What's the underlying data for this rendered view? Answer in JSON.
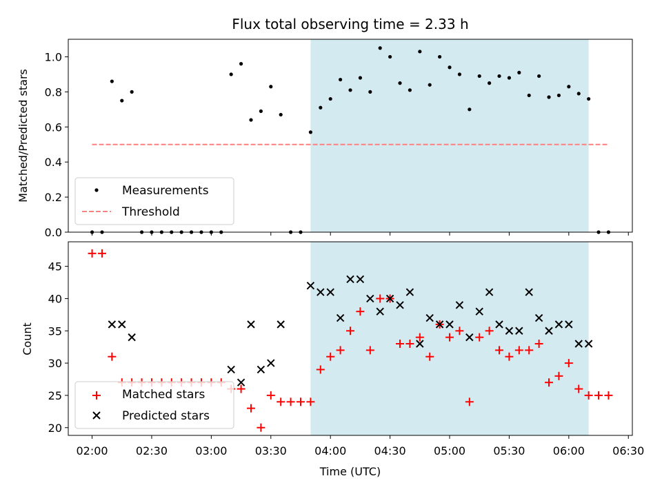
{
  "chart_data": [
    {
      "type": "scatter",
      "title": "Flux total observing time = 2.33 h",
      "xlabel": "",
      "ylabel": "Matched/Predicted stars",
      "ylim": [
        0,
        1.1
      ],
      "yticks": [
        "0.0",
        "0.2",
        "0.4",
        "0.6",
        "0.8",
        "1.0"
      ],
      "x_unit": "minutes after 02:00 UTC",
      "shaded_interval_x": [
        110,
        250
      ],
      "shade_color": "#d4eaf1",
      "legend_position": "lower-left",
      "series": [
        {
          "name": "Measurements",
          "color": "#000000",
          "marker": "dot",
          "x": [
            0,
            5,
            10,
            15,
            20,
            25,
            30,
            35,
            40,
            45,
            50,
            55,
            60,
            65,
            70,
            75,
            80,
            85,
            90,
            95,
            100,
            105,
            110,
            115,
            120,
            125,
            130,
            135,
            140,
            145,
            150,
            155,
            160,
            165,
            170,
            175,
            180,
            185,
            190,
            195,
            200,
            205,
            210,
            215,
            220,
            225,
            230,
            235,
            240,
            245,
            250,
            255,
            260
          ],
          "y": [
            0,
            0,
            0.86,
            0.75,
            0.8,
            0,
            0,
            0,
            0,
            0,
            0,
            0,
            0,
            0,
            0.9,
            0.96,
            0.64,
            0.69,
            0.83,
            0.67,
            0,
            0,
            0.57,
            0.71,
            0.76,
            0.87,
            0.81,
            0.88,
            0.8,
            1.05,
            1.0,
            0.85,
            0.81,
            1.03,
            0.84,
            1.0,
            0.94,
            0.9,
            0.7,
            0.89,
            0.85,
            0.89,
            0.88,
            0.91,
            0.78,
            0.89,
            0.77,
            0.78,
            0.83,
            0.79,
            0.76,
            0,
            0
          ]
        },
        {
          "name": "Threshold",
          "color": "#ff7f7f",
          "style": "dashed",
          "x": [
            0,
            260
          ],
          "y": [
            0.5,
            0.5
          ]
        }
      ]
    },
    {
      "type": "scatter",
      "title": "",
      "xlabel": "Time (UTC)",
      "ylabel": "Count",
      "ylim": [
        18.8,
        48.8
      ],
      "yticks": [
        "20",
        "25",
        "30",
        "35",
        "40",
        "45"
      ],
      "x_unit": "minutes after 02:00 UTC",
      "xlim": [
        -12,
        272
      ],
      "xtick_values": [
        0,
        30,
        60,
        90,
        120,
        150,
        180,
        210,
        240,
        270
      ],
      "xtick_labels": [
        "02:00",
        "02:30",
        "03:00",
        "03:30",
        "04:00",
        "04:30",
        "05:00",
        "05:30",
        "06:00",
        "06:30"
      ],
      "shaded_interval_x": [
        110,
        250
      ],
      "legend_position": "lower-left",
      "series": [
        {
          "name": "Matched stars",
          "color": "#ff0000",
          "marker": "plus",
          "x": [
            0,
            5,
            10,
            15,
            20,
            25,
            30,
            35,
            40,
            45,
            50,
            55,
            60,
            65,
            70,
            75,
            80,
            85,
            90,
            95,
            100,
            105,
            110,
            115,
            120,
            125,
            130,
            135,
            140,
            145,
            150,
            155,
            160,
            165,
            170,
            175,
            180,
            185,
            190,
            195,
            200,
            205,
            210,
            215,
            220,
            225,
            230,
            235,
            240,
            245,
            250,
            255,
            260
          ],
          "y": [
            47,
            47,
            31,
            27,
            27,
            27,
            27,
            27,
            27,
            27,
            27,
            27,
            27,
            27,
            26,
            26,
            23,
            20,
            25,
            24,
            24,
            24,
            24,
            29,
            31,
            32,
            35,
            38,
            32,
            40,
            40,
            33,
            33,
            34,
            31,
            36,
            34,
            35,
            24,
            34,
            35,
            32,
            31,
            32,
            32,
            33,
            27,
            28,
            30,
            26,
            25,
            25,
            25
          ]
        },
        {
          "name": "Predicted stars",
          "color": "#000000",
          "marker": "x",
          "x": [
            10,
            15,
            20,
            70,
            75,
            80,
            85,
            90,
            95,
            110,
            115,
            120,
            125,
            130,
            135,
            140,
            145,
            150,
            155,
            160,
            165,
            170,
            175,
            180,
            185,
            190,
            195,
            200,
            205,
            210,
            215,
            220,
            225,
            230,
            235,
            240,
            245,
            250
          ],
          "y": [
            36,
            36,
            34,
            29,
            27,
            36,
            29,
            30,
            36,
            42,
            41,
            41,
            37,
            43,
            43,
            40,
            38,
            40,
            39,
            41,
            33,
            37,
            36,
            36,
            39,
            34,
            38,
            41,
            36,
            35,
            35,
            41,
            37,
            35,
            36,
            36,
            33,
            33
          ]
        }
      ]
    }
  ]
}
